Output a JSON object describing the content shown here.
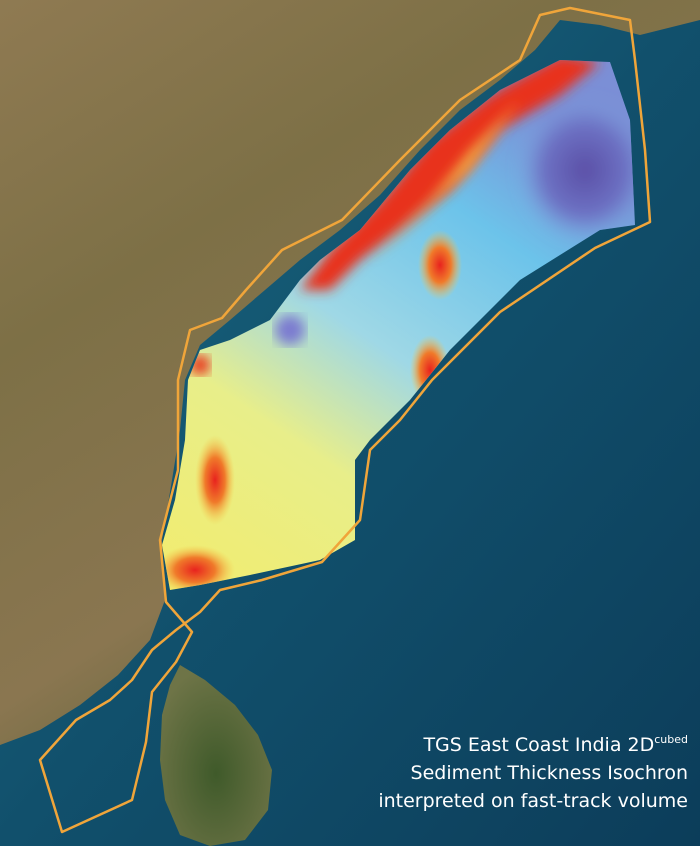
{
  "caption": {
    "line1": "TGS East Coast India 2D",
    "superscript": "cubed",
    "line2": "Sediment Thickness Isochron",
    "line3": "interpreted on fast-track volume"
  }
}
